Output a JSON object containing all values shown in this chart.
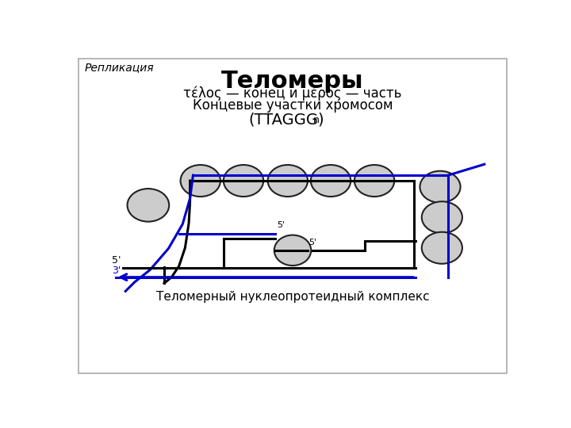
{
  "title": "Теломеры",
  "subtitle1": "τέλος — конец и μέρος — часть",
  "subtitle2": "Концевые участки хромосом",
  "formula_main": "(TTAGGG)",
  "formula_sub": "n",
  "label_replication": "Репликация",
  "label_complex": "Теломерный нуклеопротеидный комплекс",
  "bg_color": "#ffffff",
  "border_color": "#aaaaaa",
  "ellipse_fill": "#cccccc",
  "ellipse_edge": "#222222",
  "black_color": "#000000",
  "blue_color": "#0000cc"
}
